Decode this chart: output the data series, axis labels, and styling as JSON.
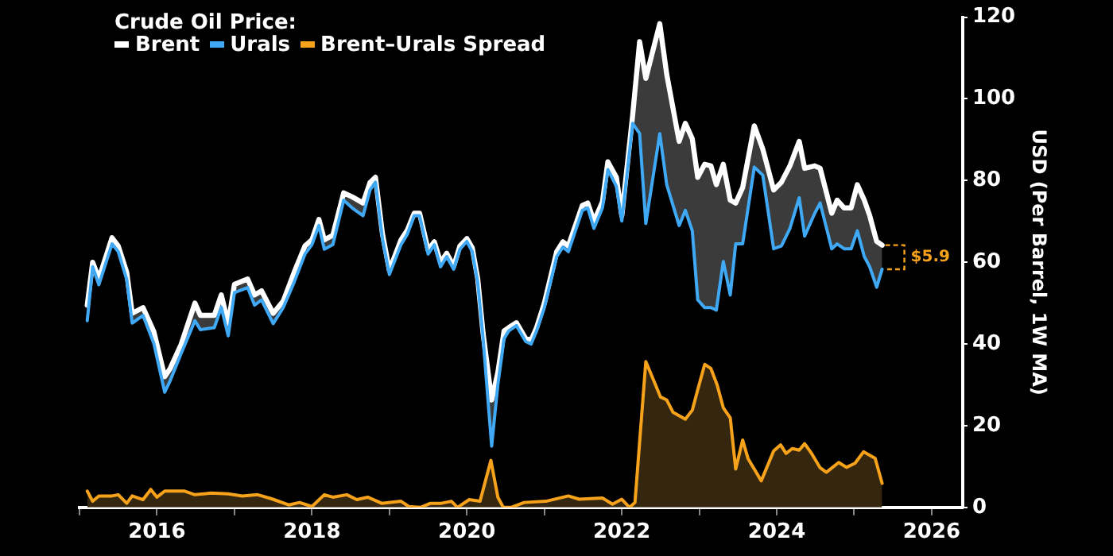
{
  "chart_data": {
    "type": "line",
    "legend_title": "Crude Oil Price:",
    "ylabel": "USD (Per Barrel, 1W MA)",
    "xlim": [
      2015,
      2026.4
    ],
    "xticks": [
      {
        "value": 2015,
        "label": null
      },
      2016,
      {
        "value": 2017,
        "label": null
      },
      2018,
      {
        "value": 2019,
        "label": null
      },
      2020,
      {
        "value": 2021,
        "label": null
      },
      2022,
      {
        "value": 2023,
        "label": null
      },
      2024,
      {
        "value": 2025,
        "label": null
      },
      2026
    ],
    "ylim": [
      0,
      120
    ],
    "yticks": [
      0,
      20,
      40,
      60,
      80,
      100,
      120
    ],
    "grid": false,
    "legend": "top left",
    "annotations": [
      "$5.9"
    ],
    "series": [
      {
        "name": "Brent",
        "type": "line",
        "color": "#ffffff",
        "x": [
          2015.1,
          2015.17,
          2015.25,
          2015.42,
          2015.5,
          2015.61,
          2015.68,
          2015.82,
          2015.96,
          2016.1,
          2016.17,
          2016.31,
          2016.49,
          2016.56,
          2016.74,
          2016.83,
          2016.92,
          2017.0,
          2017.17,
          2017.26,
          2017.35,
          2017.5,
          2017.63,
          2017.77,
          2017.91,
          2018.0,
          2018.09,
          2018.16,
          2018.27,
          2018.41,
          2018.52,
          2018.66,
          2018.75,
          2018.82,
          2018.91,
          2019.0,
          2019.15,
          2019.23,
          2019.32,
          2019.39,
          2019.5,
          2019.58,
          2019.66,
          2019.74,
          2019.83,
          2019.91,
          2020.0,
          2020.07,
          2020.14,
          2020.21,
          2020.32,
          2020.4,
          2020.48,
          2020.54,
          2020.64,
          2020.76,
          2020.83,
          2020.9,
          2021.0,
          2021.16,
          2021.24,
          2021.31,
          2021.49,
          2021.56,
          2021.64,
          2021.75,
          2021.82,
          2021.93,
          2022.0,
          2022.14,
          2022.23,
          2022.31,
          2022.49,
          2022.58,
          2022.74,
          2022.82,
          2022.91,
          2022.98,
          2023.07,
          2023.15,
          2023.22,
          2023.31,
          2023.4,
          2023.47,
          2023.56,
          2023.71,
          2023.82,
          2023.96,
          2024.06,
          2024.17,
          2024.29,
          2024.36,
          2024.49,
          2024.56,
          2024.71,
          2024.78,
          2024.87,
          2024.96,
          2025.04,
          2025.13,
          2025.2,
          2025.29,
          2025.36
        ],
        "values": [
          49.5,
          60,
          56,
          66,
          64,
          57.5,
          47.5,
          48.9,
          43,
          32,
          34,
          39.8,
          50,
          47,
          47,
          52,
          45,
          54.6,
          55.9,
          52,
          53,
          47.5,
          50.5,
          57.5,
          64,
          65.5,
          70.5,
          65.5,
          66.6,
          77,
          76,
          74.5,
          79.5,
          80.8,
          67,
          58,
          65.5,
          67.8,
          72,
          72,
          63,
          65,
          60,
          62.2,
          59,
          64,
          65.8,
          63.5,
          56,
          42.5,
          26.3,
          33,
          43.2,
          44,
          45.2,
          41.3,
          41,
          44,
          50,
          62.6,
          65,
          64,
          73.9,
          74.5,
          70,
          74.8,
          84.6,
          80.8,
          71.4,
          96,
          114,
          105,
          118.4,
          106,
          89.6,
          94,
          90.2,
          80.8,
          84,
          83.6,
          79,
          84,
          75.2,
          74.5,
          78.3,
          93.4,
          87.7,
          77.7,
          79.6,
          83.6,
          89.6,
          83,
          83.6,
          83,
          72,
          75.2,
          73.3,
          73.3,
          79,
          75.2,
          71.4,
          65.1,
          64.2
        ],
        "lower": [
          45.7,
          58.9,
          54.5,
          64.5,
          62.6,
          55.8,
          45.1,
          47,
          40.1,
          28.2,
          31,
          37.6,
          45.7,
          43.5,
          44,
          49,
          42,
          52.6,
          53.8,
          49.5,
          50.8,
          45,
          48.9,
          55.1,
          62,
          64.3,
          69,
          63.2,
          64.3,
          75.2,
          73.3,
          71.4,
          77.7,
          79.6,
          65.8,
          57,
          64.3,
          66.8,
          71.4,
          71.4,
          62,
          64.3,
          58.9,
          61.4,
          58.3,
          63.2,
          65.1,
          62.6,
          55.1,
          41.3,
          15,
          30,
          41.3,
          43.2,
          44.5,
          40.6,
          40,
          43.2,
          48.9,
          61.4,
          63.7,
          62.6,
          72.7,
          73.3,
          68.3,
          73.3,
          82.7,
          78.6,
          70.1,
          94,
          91.5,
          69.5,
          91.5,
          79,
          69,
          72.7,
          67.7,
          50.8,
          48.9,
          48.9,
          48.3,
          60.2,
          52,
          64.5,
          64.5,
          83.3,
          81.3,
          63.3,
          64,
          68.3,
          75.8,
          66.4,
          72,
          74.5,
          63.3,
          64.5,
          63.3,
          63.3,
          67.7,
          61.4,
          58.9,
          53.9,
          58.3
        ],
        "upper": [
          49.5,
          60,
          56,
          66,
          64,
          57.5,
          47.5,
          48.9,
          43,
          32,
          34,
          39.8,
          50,
          47,
          47,
          52,
          45,
          54.6,
          55.9,
          52,
          53,
          47.5,
          50.5,
          57.5,
          64,
          65.5,
          70.5,
          65.5,
          66.6,
          77,
          76,
          74.5,
          79.5,
          80.8,
          67,
          58,
          65.5,
          67.8,
          72,
          72,
          63,
          65,
          60,
          62.2,
          59,
          64,
          65.8,
          63.5,
          56,
          42.5,
          26.3,
          33,
          43.2,
          44,
          45.2,
          41.3,
          41,
          44,
          50,
          62.6,
          65,
          64,
          73.9,
          74.5,
          70,
          74.8,
          84.6,
          80.8,
          71.4,
          96,
          114,
          105,
          118.4,
          106,
          89.6,
          94,
          90.2,
          80.8,
          84,
          83.6,
          79,
          84,
          75.2,
          74.5,
          78.3,
          93.4,
          87.7,
          77.7,
          79.6,
          83.6,
          89.6,
          83,
          83.6,
          83,
          72,
          75.2,
          73.3,
          73.3,
          79,
          75.2,
          71.4,
          65.1,
          64.2
        ]
      },
      {
        "name": "Urals",
        "type": "line",
        "color": "#3fa9f5",
        "x": [
          2015.1,
          2015.17,
          2015.25,
          2015.42,
          2015.5,
          2015.61,
          2015.68,
          2015.82,
          2015.96,
          2016.1,
          2016.17,
          2016.31,
          2016.49,
          2016.56,
          2016.74,
          2016.83,
          2016.92,
          2017.0,
          2017.17,
          2017.26,
          2017.35,
          2017.5,
          2017.63,
          2017.77,
          2017.91,
          2018.0,
          2018.09,
          2018.16,
          2018.27,
          2018.41,
          2018.52,
          2018.66,
          2018.75,
          2018.82,
          2018.91,
          2019.0,
          2019.15,
          2019.23,
          2019.32,
          2019.39,
          2019.5,
          2019.58,
          2019.66,
          2019.74,
          2019.83,
          2019.91,
          2020.0,
          2020.07,
          2020.14,
          2020.21,
          2020.32,
          2020.4,
          2020.48,
          2020.54,
          2020.64,
          2020.76,
          2020.83,
          2020.9,
          2021.0,
          2021.16,
          2021.24,
          2021.31,
          2021.49,
          2021.56,
          2021.64,
          2021.75,
          2021.82,
          2021.93,
          2022.0,
          2022.14,
          2022.23,
          2022.31,
          2022.49,
          2022.58,
          2022.74,
          2022.82,
          2022.91,
          2022.98,
          2023.07,
          2023.15,
          2023.22,
          2023.31,
          2023.4,
          2023.47,
          2023.56,
          2023.71,
          2023.82,
          2023.96,
          2024.06,
          2024.17,
          2024.29,
          2024.36,
          2024.49,
          2024.56,
          2024.71,
          2024.78,
          2024.87,
          2024.96,
          2025.04,
          2025.13,
          2025.2,
          2025.29,
          2025.36
        ],
        "values": [
          45.7,
          58.9,
          54.5,
          64.5,
          62.6,
          55.8,
          45.1,
          47,
          40.1,
          28.2,
          31,
          37.6,
          45.7,
          43.5,
          44,
          49,
          42,
          52.6,
          53.8,
          49.5,
          50.8,
          45,
          48.9,
          55.1,
          62,
          64.3,
          69,
          63.2,
          64.3,
          75.2,
          73.3,
          71.4,
          77.7,
          79.6,
          65.8,
          57,
          64.3,
          66.8,
          71.4,
          71.4,
          62,
          64.3,
          58.9,
          61.4,
          58.3,
          63.2,
          65.1,
          62.6,
          55.1,
          41.3,
          15,
          30,
          41.3,
          43.2,
          44.5,
          40.6,
          40,
          43.2,
          48.9,
          61.4,
          63.7,
          62.6,
          72.7,
          73.3,
          68.3,
          73.3,
          82.7,
          78.6,
          70.1,
          94,
          91.5,
          69.5,
          91.5,
          79,
          69,
          72.7,
          67.7,
          50.8,
          48.9,
          48.9,
          48.3,
          60.2,
          52,
          64.5,
          64.5,
          83.3,
          81.3,
          63.3,
          64,
          68.3,
          75.8,
          66.4,
          72,
          74.5,
          63.3,
          64.5,
          63.3,
          63.3,
          67.7,
          61.4,
          58.9,
          53.9,
          58.3
        ]
      },
      {
        "name": "Brent–Urals Spread",
        "type": "area",
        "color": "#f7a21b",
        "x": [
          2015.1,
          2015.17,
          2015.25,
          2015.42,
          2015.5,
          2015.61,
          2015.68,
          2015.82,
          2015.92,
          2016.0,
          2016.1,
          2016.35,
          2016.49,
          2016.7,
          2016.92,
          2017.1,
          2017.3,
          2017.48,
          2017.7,
          2017.84,
          2018.0,
          2018.16,
          2018.27,
          2018.45,
          2018.58,
          2018.72,
          2018.9,
          2019.15,
          2019.25,
          2019.4,
          2019.53,
          2019.67,
          2019.8,
          2019.88,
          2020.03,
          2020.17,
          2020.31,
          2020.4,
          2020.47,
          2020.57,
          2020.74,
          2021.02,
          2021.31,
          2021.45,
          2021.75,
          2021.88,
          2022.0,
          2022.1,
          2022.17,
          2022.31,
          2022.42,
          2022.5,
          2022.58,
          2022.66,
          2022.82,
          2022.91,
          2022.98,
          2023.07,
          2023.15,
          2023.23,
          2023.31,
          2023.4,
          2023.47,
          2023.56,
          2023.63,
          2023.8,
          2023.96,
          2024.05,
          2024.12,
          2024.2,
          2024.29,
          2024.36,
          2024.45,
          2024.56,
          2024.64,
          2024.8,
          2024.9,
          2025.01,
          2025.12,
          2025.27,
          2025.36
        ],
        "values": [
          4,
          1.5,
          2.8,
          2.8,
          3.1,
          1,
          2.8,
          1.9,
          4.4,
          2.5,
          4,
          4,
          3.1,
          3.5,
          3.3,
          2.8,
          3.1,
          2.1,
          0.6,
          1.2,
          0.2,
          3.1,
          2.5,
          3.1,
          1.9,
          2.5,
          1,
          1.5,
          0.2,
          0,
          1,
          1,
          1.5,
          0,
          1.9,
          1.5,
          11.5,
          2.5,
          0,
          0,
          1.2,
          1.5,
          2.8,
          2,
          2.3,
          0.8,
          2,
          0,
          1.2,
          35.7,
          30.7,
          27,
          26.3,
          23.3,
          21.6,
          23.8,
          28.8,
          35,
          34,
          30,
          24.4,
          21.9,
          9.4,
          16.5,
          11.9,
          6.5,
          13.8,
          15.3,
          13.2,
          14.4,
          14,
          15.6,
          13.2,
          9.7,
          8.6,
          11,
          9.8,
          10.8,
          13.6,
          12,
          5.9
        ]
      }
    ]
  }
}
